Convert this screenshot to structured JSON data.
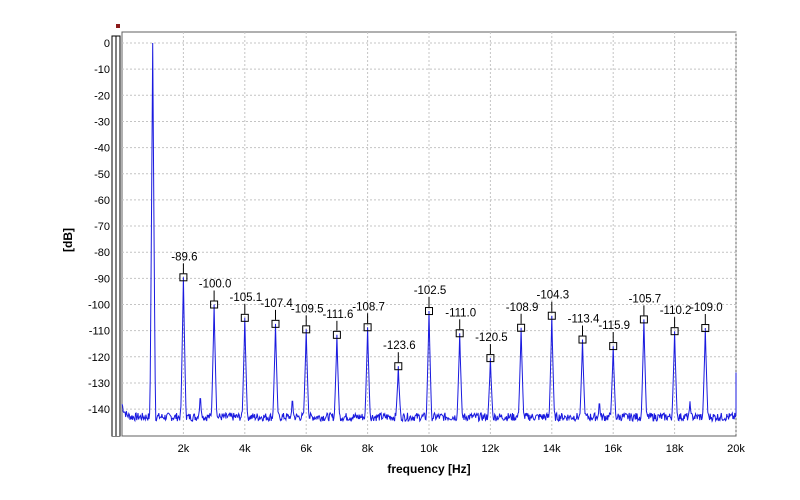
{
  "chart_data": {
    "type": "line",
    "xlabel": "frequency [Hz]",
    "ylabel": "[dB]",
    "xlim": [
      0,
      20000
    ],
    "ylim": [
      -150,
      0
    ],
    "x_ticks": [
      2000,
      4000,
      6000,
      8000,
      10000,
      12000,
      14000,
      16000,
      18000,
      20000
    ],
    "x_tick_labels": [
      "2k",
      "4k",
      "6k",
      "8k",
      "10k",
      "12k",
      "14k",
      "16k",
      "18k",
      "20k"
    ],
    "y_ticks": [
      0,
      -10,
      -20,
      -30,
      -40,
      -50,
      -60,
      -70,
      -80,
      -90,
      -100,
      -110,
      -120,
      -130,
      -140
    ],
    "y_tick_labels": [
      "0",
      "-10",
      "-20",
      "-30",
      "-40",
      "-50",
      "-60",
      "-70",
      "-80",
      "-90",
      "-100",
      "-110",
      "-120",
      "-130",
      "-140"
    ],
    "grid": true,
    "noise_floor_db": -143,
    "fundamental": {
      "x": 1000,
      "y": 0
    },
    "harmonics": [
      {
        "x": 2000,
        "y": -89.6,
        "label": "-89.6"
      },
      {
        "x": 3000,
        "y": -100.0,
        "label": "-100.0"
      },
      {
        "x": 4000,
        "y": -105.1,
        "label": "-105.1"
      },
      {
        "x": 5000,
        "y": -107.4,
        "label": "-107.4"
      },
      {
        "x": 6000,
        "y": -109.5,
        "label": "-109.5"
      },
      {
        "x": 7000,
        "y": -111.6,
        "label": "-111.6"
      },
      {
        "x": 8000,
        "y": -108.7,
        "label": "-108.7"
      },
      {
        "x": 9000,
        "y": -123.6,
        "label": "-123.6"
      },
      {
        "x": 10000,
        "y": -102.5,
        "label": "-102.5"
      },
      {
        "x": 11000,
        "y": -111.0,
        "label": "-111.0"
      },
      {
        "x": 12000,
        "y": -120.5,
        "label": "-120.5"
      },
      {
        "x": 13000,
        "y": -108.9,
        "label": "-108.9"
      },
      {
        "x": 14000,
        "y": -104.3,
        "label": "-104.3"
      },
      {
        "x": 15000,
        "y": -113.4,
        "label": "-113.4"
      },
      {
        "x": 16000,
        "y": -115.9,
        "label": "-115.9"
      },
      {
        "x": 17000,
        "y": -105.7,
        "label": "-105.7"
      },
      {
        "x": 18000,
        "y": -110.2,
        "label": "-110.2"
      },
      {
        "x": 19000,
        "y": -109.0,
        "label": "-109.0"
      }
    ],
    "spurs": [
      {
        "x": 2550,
        "y": -136
      },
      {
        "x": 5550,
        "y": -137
      },
      {
        "x": 15550,
        "y": -138
      },
      {
        "x": 18500,
        "y": -137
      }
    ],
    "series_color": "#1a1adf",
    "marker_color": "#000000",
    "level_meter": {
      "left_fraction": 0.98,
      "right_fraction": 0.98,
      "peak_color": "#8b1a1a"
    }
  }
}
